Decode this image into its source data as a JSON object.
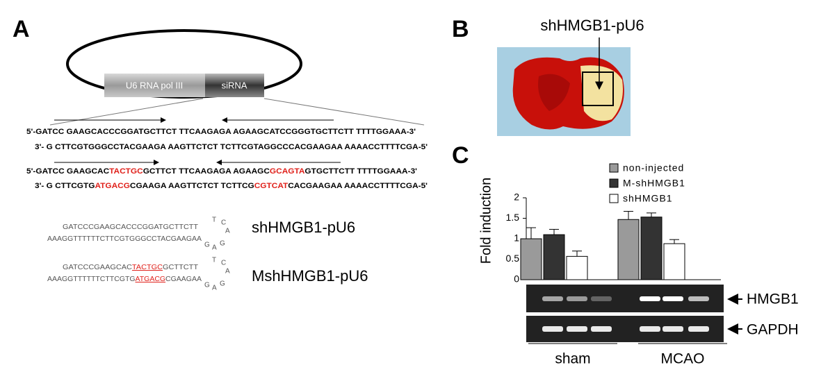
{
  "panel_a": {
    "label": "A",
    "promoter": "U6 RNA pol III",
    "insert": "siRNA",
    "sequences": [
      [
        {
          "text": "5'-GATCC GAAGCACCCGGATGCTTCT TTCAAGAGA AGAAGCATCCGGGTGCTTCTT TTTTGGAAA-3'",
          "highlight": false
        }
      ],
      [
        {
          "text": "3'- G CTTCGTGGGCCTACGAAGA AAGTTCTCT TCTTCGTAGGCCCACGAAGAA AAAACCTTTTCGA-5'",
          "highlight": false
        }
      ],
      [
        {
          "text": "5'-GATCC GAAGCAC",
          "highlight": false
        },
        {
          "text": "TACTGC",
          "highlight": true
        },
        {
          "text": "GCTTCT TTCAAGAGA AGAAGC",
          "highlight": false
        },
        {
          "text": "GCAGTA",
          "highlight": true
        },
        {
          "text": "GTGCTTCTT TTTTGGAAA-3'",
          "highlight": false
        }
      ],
      [
        {
          "text": "3'- G CTTCGTG",
          "highlight": false
        },
        {
          "text": "ATGACG",
          "highlight": true
        },
        {
          "text": "CGAAGA AAGTTCTCT TCTTCG",
          "highlight": false
        },
        {
          "text": "CGTCAT",
          "highlight": true
        },
        {
          "text": "CACGAAGAA AAAACCTTTTCGA-5'",
          "highlight": false
        }
      ]
    ],
    "hairpins": [
      {
        "name": "shHMGB1-pU6",
        "top": [
          {
            "text": "GATCCCGAAGCACCCGGATGCTTCTT",
            "highlight": false
          }
        ],
        "bottom": [
          {
            "text": "AAAGGTTTTTTCTTCGTGGGCCTACGAAGAA",
            "highlight": false
          }
        ],
        "loop": [
          "T",
          "C",
          "A",
          "G",
          "A",
          "G"
        ]
      },
      {
        "name": "MshHMGB1-pU6",
        "top": [
          {
            "text": "GATCCCGAAGCAC",
            "highlight": false
          },
          {
            "text": "TACTGC",
            "highlight": true
          },
          {
            "text": "GCTTCTT",
            "highlight": false
          }
        ],
        "bottom": [
          {
            "text": "AAAGGTTTTTTCTTCGTG",
            "highlight": false
          },
          {
            "text": "ATGACG",
            "highlight": true
          },
          {
            "text": "CGAAGAA",
            "highlight": false
          }
        ],
        "loop": [
          "T",
          "C",
          "A",
          "G",
          "A",
          "G"
        ]
      }
    ]
  },
  "panel_b": {
    "label": "B",
    "annotation": "shHMGB1-pU6"
  },
  "panel_c": {
    "label": "C",
    "gel_bands": [
      "HMGB1",
      "GAPDH"
    ]
  },
  "chart_data": {
    "type": "bar",
    "ylabel": "Fold induction",
    "categories": [
      "sham",
      "MCAO"
    ],
    "series": [
      {
        "name": "non-injected",
        "color": "#9a9a9a",
        "values": [
          1.0,
          1.47
        ],
        "errors": [
          0.27,
          0.2
        ]
      },
      {
        "name": "M-shHMGB1",
        "color": "#333333",
        "values": [
          1.1,
          1.53
        ],
        "errors": [
          0.13,
          0.1
        ]
      },
      {
        "name": "shHMGB1",
        "color": "#ffffff",
        "values": [
          0.57,
          0.88
        ],
        "errors": [
          0.13,
          0.1
        ]
      }
    ],
    "ylim": [
      0,
      2
    ],
    "yticks": [
      0,
      0.5,
      1,
      1.5,
      2
    ]
  }
}
